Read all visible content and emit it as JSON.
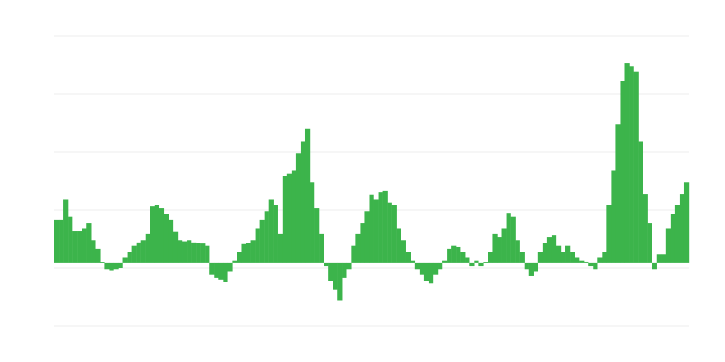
{
  "chart_data": {
    "type": "bar",
    "color": "#3cb44b",
    "grid": true,
    "ylim": [
      -1.08,
      3.92
    ],
    "yticks": [
      -1.08,
      -0.08,
      0.92,
      1.92,
      2.92,
      3.92
    ],
    "values": [
      0.75,
      0.75,
      1.1,
      0.8,
      0.56,
      0.56,
      0.6,
      0.7,
      0.4,
      0.25,
      0.02,
      -0.1,
      -0.12,
      -0.1,
      -0.08,
      0.1,
      0.2,
      0.3,
      0.36,
      0.4,
      0.5,
      0.98,
      1.0,
      0.95,
      0.85,
      0.75,
      0.55,
      0.4,
      0.38,
      0.4,
      0.36,
      0.35,
      0.34,
      0.3,
      -0.2,
      -0.25,
      -0.28,
      -0.33,
      -0.15,
      0.05,
      0.2,
      0.33,
      0.35,
      0.4,
      0.6,
      0.75,
      0.9,
      1.1,
      1.0,
      0.5,
      1.5,
      1.55,
      1.6,
      1.9,
      2.1,
      2.33,
      1.4,
      0.95,
      0.5,
      -0.05,
      -0.3,
      -0.45,
      -0.65,
      -0.25,
      -0.1,
      0.3,
      0.5,
      0.7,
      0.9,
      1.19,
      1.1,
      1.23,
      1.25,
      1.05,
      1.0,
      0.6,
      0.4,
      0.2,
      0.05,
      -0.1,
      -0.2,
      -0.3,
      -0.35,
      -0.2,
      -0.1,
      0.05,
      0.25,
      0.3,
      0.28,
      0.2,
      0.1,
      -0.05,
      0.05,
      -0.05,
      0.02,
      0.2,
      0.5,
      0.45,
      0.6,
      0.87,
      0.8,
      0.4,
      0.2,
      -0.1,
      -0.22,
      -0.15,
      0.2,
      0.35,
      0.45,
      0.48,
      0.3,
      0.2,
      0.3,
      0.2,
      0.1,
      0.05,
      0.03,
      -0.05,
      -0.1,
      0.1,
      0.2,
      1.0,
      1.6,
      2.4,
      3.14,
      3.45,
      3.4,
      3.3,
      2.1,
      1.2,
      0.7,
      -0.1,
      0.15,
      0.15,
      0.6,
      0.85,
      1.0,
      1.2,
      1.4
    ]
  }
}
